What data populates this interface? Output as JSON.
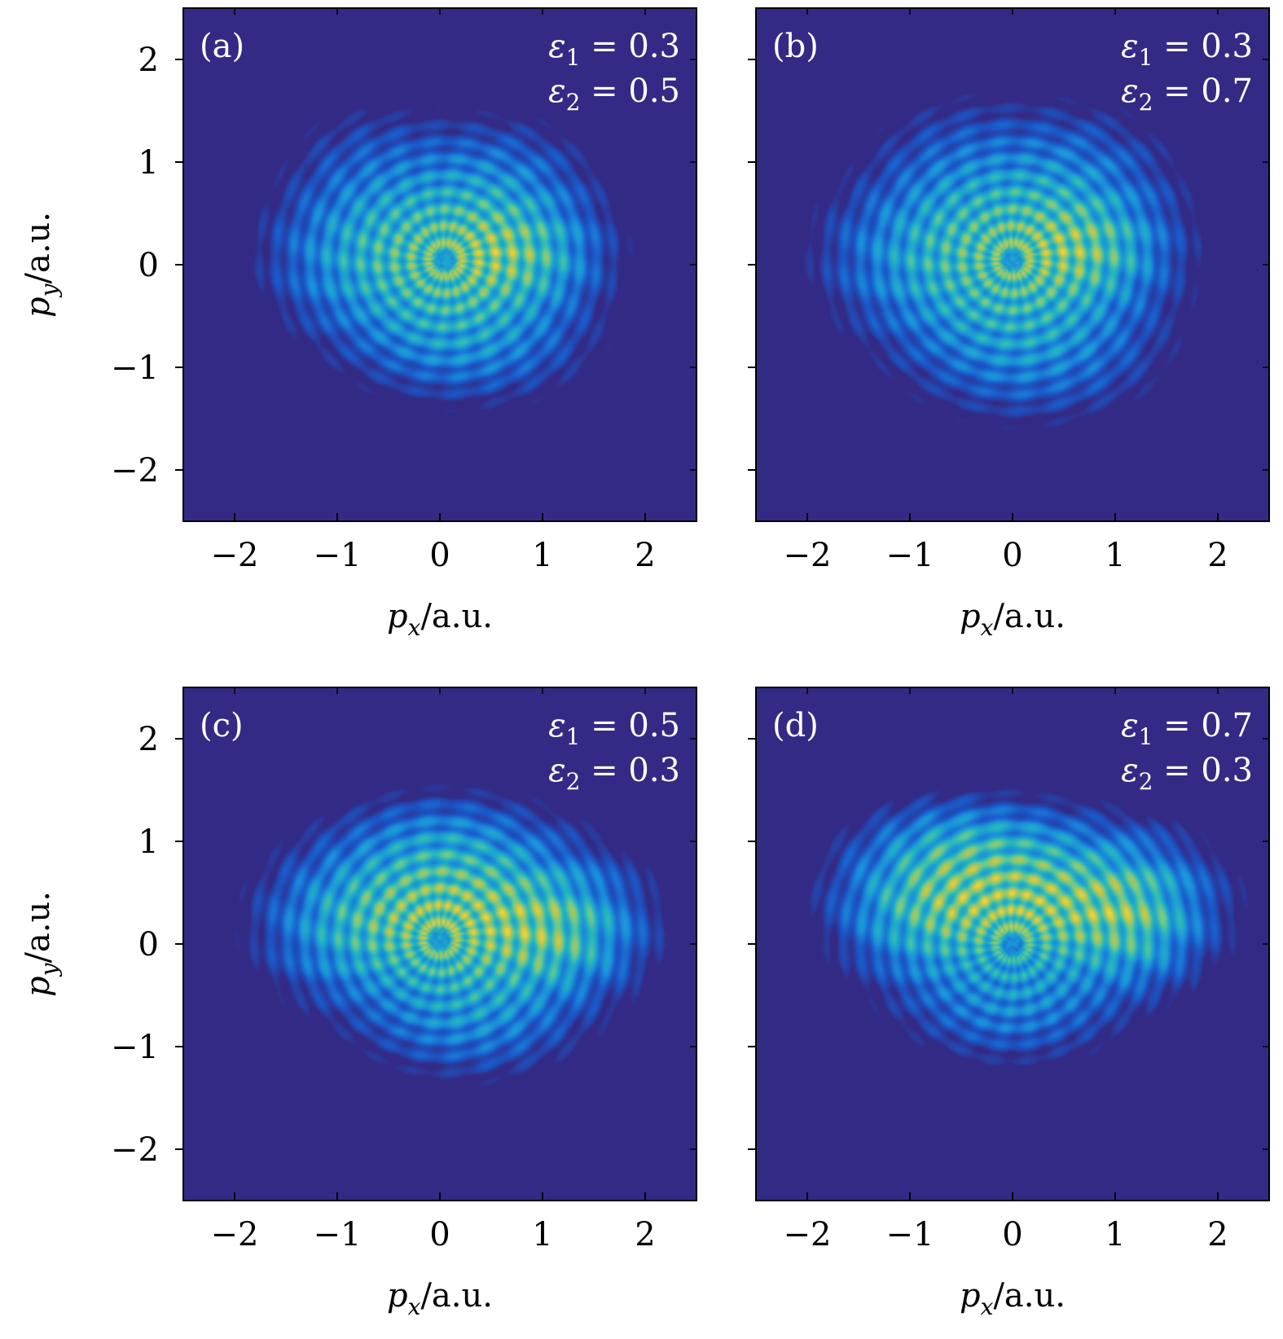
{
  "figure": {
    "xlabel_var": "p",
    "xlabel_sub": "x",
    "xlabel_unit": "/a.u.",
    "ylabel_var": "p",
    "ylabel_sub": "y",
    "ylabel_unit": "/a.u.",
    "background_color": "#332a85",
    "colormap": [
      "#332a85",
      "#1a58c9",
      "#1a8fdb",
      "#23b5c0",
      "#6bc98e",
      "#bfc44a",
      "#f1d63a"
    ]
  },
  "chart_data": [
    {
      "type": "heatmap",
      "panel": "(a)",
      "eps1_value": "0.3",
      "eps2_value": "0.5",
      "xlim": [
        -2.5,
        2.5
      ],
      "ylim": [
        -2.5,
        2.5
      ],
      "xticks": [
        -2,
        -1,
        0,
        1,
        2
      ],
      "yticks": [
        -2,
        -1,
        0,
        1,
        2
      ],
      "xticklabels": [
        "−2",
        "−1",
        "0",
        "1",
        "2"
      ],
      "yticklabels": [
        "2",
        "1",
        "0",
        "−1",
        "−2"
      ],
      "distribution": {
        "ring_center": [
          0.05,
          0.05
        ],
        "blobs": [
          {
            "x": 0.1,
            "y": 0.05,
            "sx": 0.75,
            "sy": 0.55,
            "w": 1.0
          },
          {
            "x": 0.8,
            "y": 0.1,
            "sx": 0.45,
            "sy": 0.3,
            "w": 0.55
          },
          {
            "x": -0.9,
            "y": 0.1,
            "sx": 0.55,
            "sy": 0.45,
            "w": 0.35
          },
          {
            "x": 0.3,
            "y": -0.8,
            "sx": 0.7,
            "sy": 0.35,
            "w": 0.35
          },
          {
            "x": 0.6,
            "y": 0.8,
            "sx": 0.55,
            "sy": 0.4,
            "w": 0.3
          },
          {
            "x": -0.7,
            "y": 1.0,
            "sx": 0.5,
            "sy": 0.4,
            "w": 0.2
          }
        ]
      }
    },
    {
      "type": "heatmap",
      "panel": "(b)",
      "eps1_value": "0.3",
      "eps2_value": "0.7",
      "xlim": [
        -2.5,
        2.5
      ],
      "ylim": [
        -2.5,
        2.5
      ],
      "xticks": [
        -2,
        -1,
        0,
        1,
        2
      ],
      "yticks": [
        -2,
        -1,
        0,
        1,
        2
      ],
      "xticklabels": [
        "−2",
        "−1",
        "0",
        "1",
        "2"
      ],
      "yticklabels": [],
      "distribution": {
        "ring_center": [
          0.0,
          0.05
        ],
        "blobs": [
          {
            "x": 0.05,
            "y": 0.05,
            "sx": 0.8,
            "sy": 0.6,
            "w": 1.0
          },
          {
            "x": 0.75,
            "y": 0.15,
            "sx": 0.45,
            "sy": 0.3,
            "w": 0.55
          },
          {
            "x": -1.0,
            "y": 0.1,
            "sx": 0.6,
            "sy": 0.45,
            "w": 0.35
          },
          {
            "x": 0.2,
            "y": -0.9,
            "sx": 0.75,
            "sy": 0.4,
            "w": 0.35
          },
          {
            "x": 0.6,
            "y": 0.85,
            "sx": 0.6,
            "sy": 0.45,
            "w": 0.3
          },
          {
            "x": -0.6,
            "y": 1.0,
            "sx": 0.5,
            "sy": 0.45,
            "w": 0.2
          }
        ]
      }
    },
    {
      "type": "heatmap",
      "panel": "(c)",
      "eps1_value": "0.5",
      "eps2_value": "0.3",
      "xlim": [
        -2.5,
        2.5
      ],
      "ylim": [
        -2.5,
        2.5
      ],
      "xticks": [
        -2,
        -1,
        0,
        1,
        2
      ],
      "yticks": [
        -2,
        -1,
        0,
        1,
        2
      ],
      "xticklabels": [
        "−2",
        "−1",
        "0",
        "1",
        "2"
      ],
      "yticklabels": [
        "2",
        "1",
        "0",
        "−1",
        "−2"
      ],
      "distribution": {
        "ring_center": [
          0.0,
          0.05
        ],
        "blobs": [
          {
            "x": 0.25,
            "y": 0.25,
            "sx": 0.85,
            "sy": 0.5,
            "w": 1.0
          },
          {
            "x": 1.2,
            "y": 0.1,
            "sx": 0.45,
            "sy": 0.35,
            "w": 0.45
          },
          {
            "x": -0.9,
            "y": 0.2,
            "sx": 0.55,
            "sy": 0.45,
            "w": 0.35
          },
          {
            "x": 0.3,
            "y": -0.75,
            "sx": 0.65,
            "sy": 0.35,
            "w": 0.35
          },
          {
            "x": 0.0,
            "y": 1.0,
            "sx": 0.6,
            "sy": 0.3,
            "w": 0.25
          }
        ]
      }
    },
    {
      "type": "heatmap",
      "panel": "(d)",
      "eps1_value": "0.7",
      "eps2_value": "0.3",
      "xlim": [
        -2.5,
        2.5
      ],
      "ylim": [
        -2.5,
        2.5
      ],
      "xticks": [
        -2,
        -1,
        0,
        1,
        2
      ],
      "yticks": [
        -2,
        -1,
        0,
        1,
        2
      ],
      "xticklabels": [
        "−2",
        "−1",
        "0",
        "1",
        "2"
      ],
      "yticklabels": [],
      "distribution": {
        "ring_center": [
          0.0,
          0.0
        ],
        "blobs": [
          {
            "x": 0.2,
            "y": 0.4,
            "sx": 0.9,
            "sy": 0.45,
            "w": 1.0
          },
          {
            "x": 1.2,
            "y": 0.25,
            "sx": 0.4,
            "sy": 0.4,
            "w": 0.45
          },
          {
            "x": -0.9,
            "y": 0.4,
            "sx": 0.5,
            "sy": 0.45,
            "w": 0.4
          },
          {
            "x": 0.0,
            "y": -0.6,
            "sx": 0.65,
            "sy": 0.35,
            "w": 0.35
          },
          {
            "x": -0.4,
            "y": 1.0,
            "sx": 0.55,
            "sy": 0.25,
            "w": 0.3
          }
        ]
      }
    }
  ]
}
